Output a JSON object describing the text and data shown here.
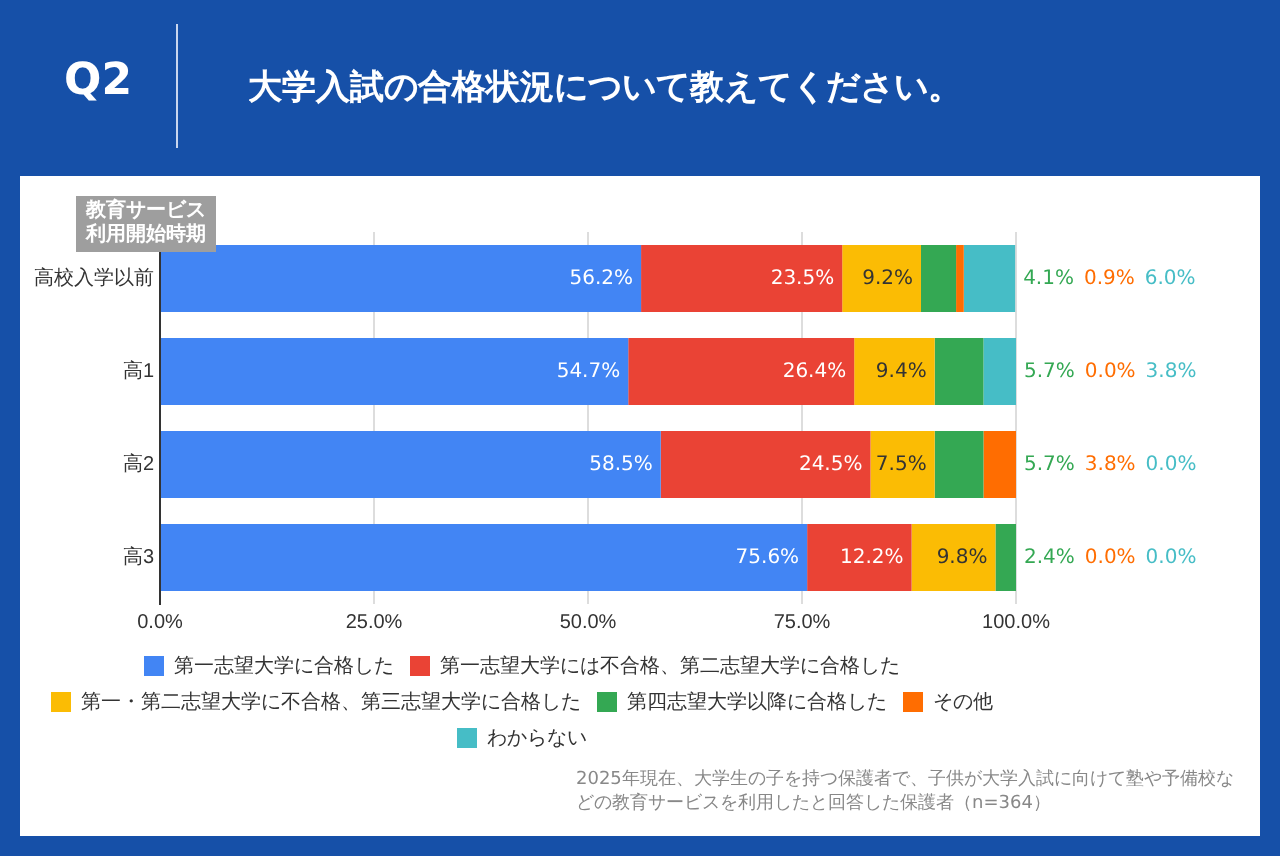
{
  "chart_data": {
    "type": "bar",
    "orientation": "horizontal",
    "stacked": true,
    "title": "大学入試の合格状況について教えてください。",
    "ylabel": "教育サービス利用開始時期",
    "categories": [
      "高校入学以前",
      "高1",
      "高2",
      "高3"
    ],
    "series": [
      {
        "name": "第一志望大学に合格した",
        "color": "#4285f4",
        "values": [
          56.2,
          54.7,
          58.5,
          75.6
        ],
        "value_labels": [
          "56.2%",
          "54.7%",
          "58.5%",
          "75.6%"
        ]
      },
      {
        "name": "第一志望大学には不合格、第二志望大学に合格した",
        "color": "#ea4335",
        "values": [
          23.5,
          26.4,
          24.5,
          12.2
        ],
        "value_labels": [
          "23.5%",
          "26.4%",
          "24.5%",
          "12.2%"
        ]
      },
      {
        "name": "第一・第二志望大学に不合格、第三志望大学に合格した",
        "color": "#fbbc04",
        "values": [
          9.2,
          9.4,
          7.5,
          9.8
        ],
        "value_labels": [
          "9.2%",
          "9.4%",
          "7.5%",
          "9.8%"
        ]
      },
      {
        "name": "第四志望大学以降に合格した",
        "color": "#34a853",
        "values": [
          4.1,
          5.7,
          5.7,
          2.4
        ],
        "value_labels": [
          "4.1%",
          "5.7%",
          "5.7%",
          "2.4%"
        ]
      },
      {
        "name": "その他",
        "color": "#ff6d01",
        "values": [
          0.9,
          0.0,
          3.8,
          0.0
        ],
        "value_labels": [
          "0.9%",
          "0.0%",
          "3.8%",
          "0.0%"
        ]
      },
      {
        "name": "わからない",
        "color": "#46bdc6",
        "values": [
          6.0,
          3.8,
          0.0,
          0.0
        ],
        "value_labels": [
          "6.0%",
          "3.8%",
          "0.0%",
          "0.0%"
        ]
      }
    ],
    "xlim": [
      0,
      100
    ],
    "xticks": [
      {
        "value": 0,
        "label": "0.0%"
      },
      {
        "value": 25,
        "label": "25.0%"
      },
      {
        "value": 50,
        "label": "50.0%"
      },
      {
        "value": 75,
        "label": "75.0%"
      },
      {
        "value": 100,
        "label": "100.0%"
      }
    ],
    "grid": "x",
    "legend": "bottom",
    "annotations": [
      "Q2",
      "2025年現在、大学生の子を持つ保護者で、子供が大学入試に向けて塾や予備校などの教育サービスを利用したと回答した保護者（n=364）"
    ]
  }
}
